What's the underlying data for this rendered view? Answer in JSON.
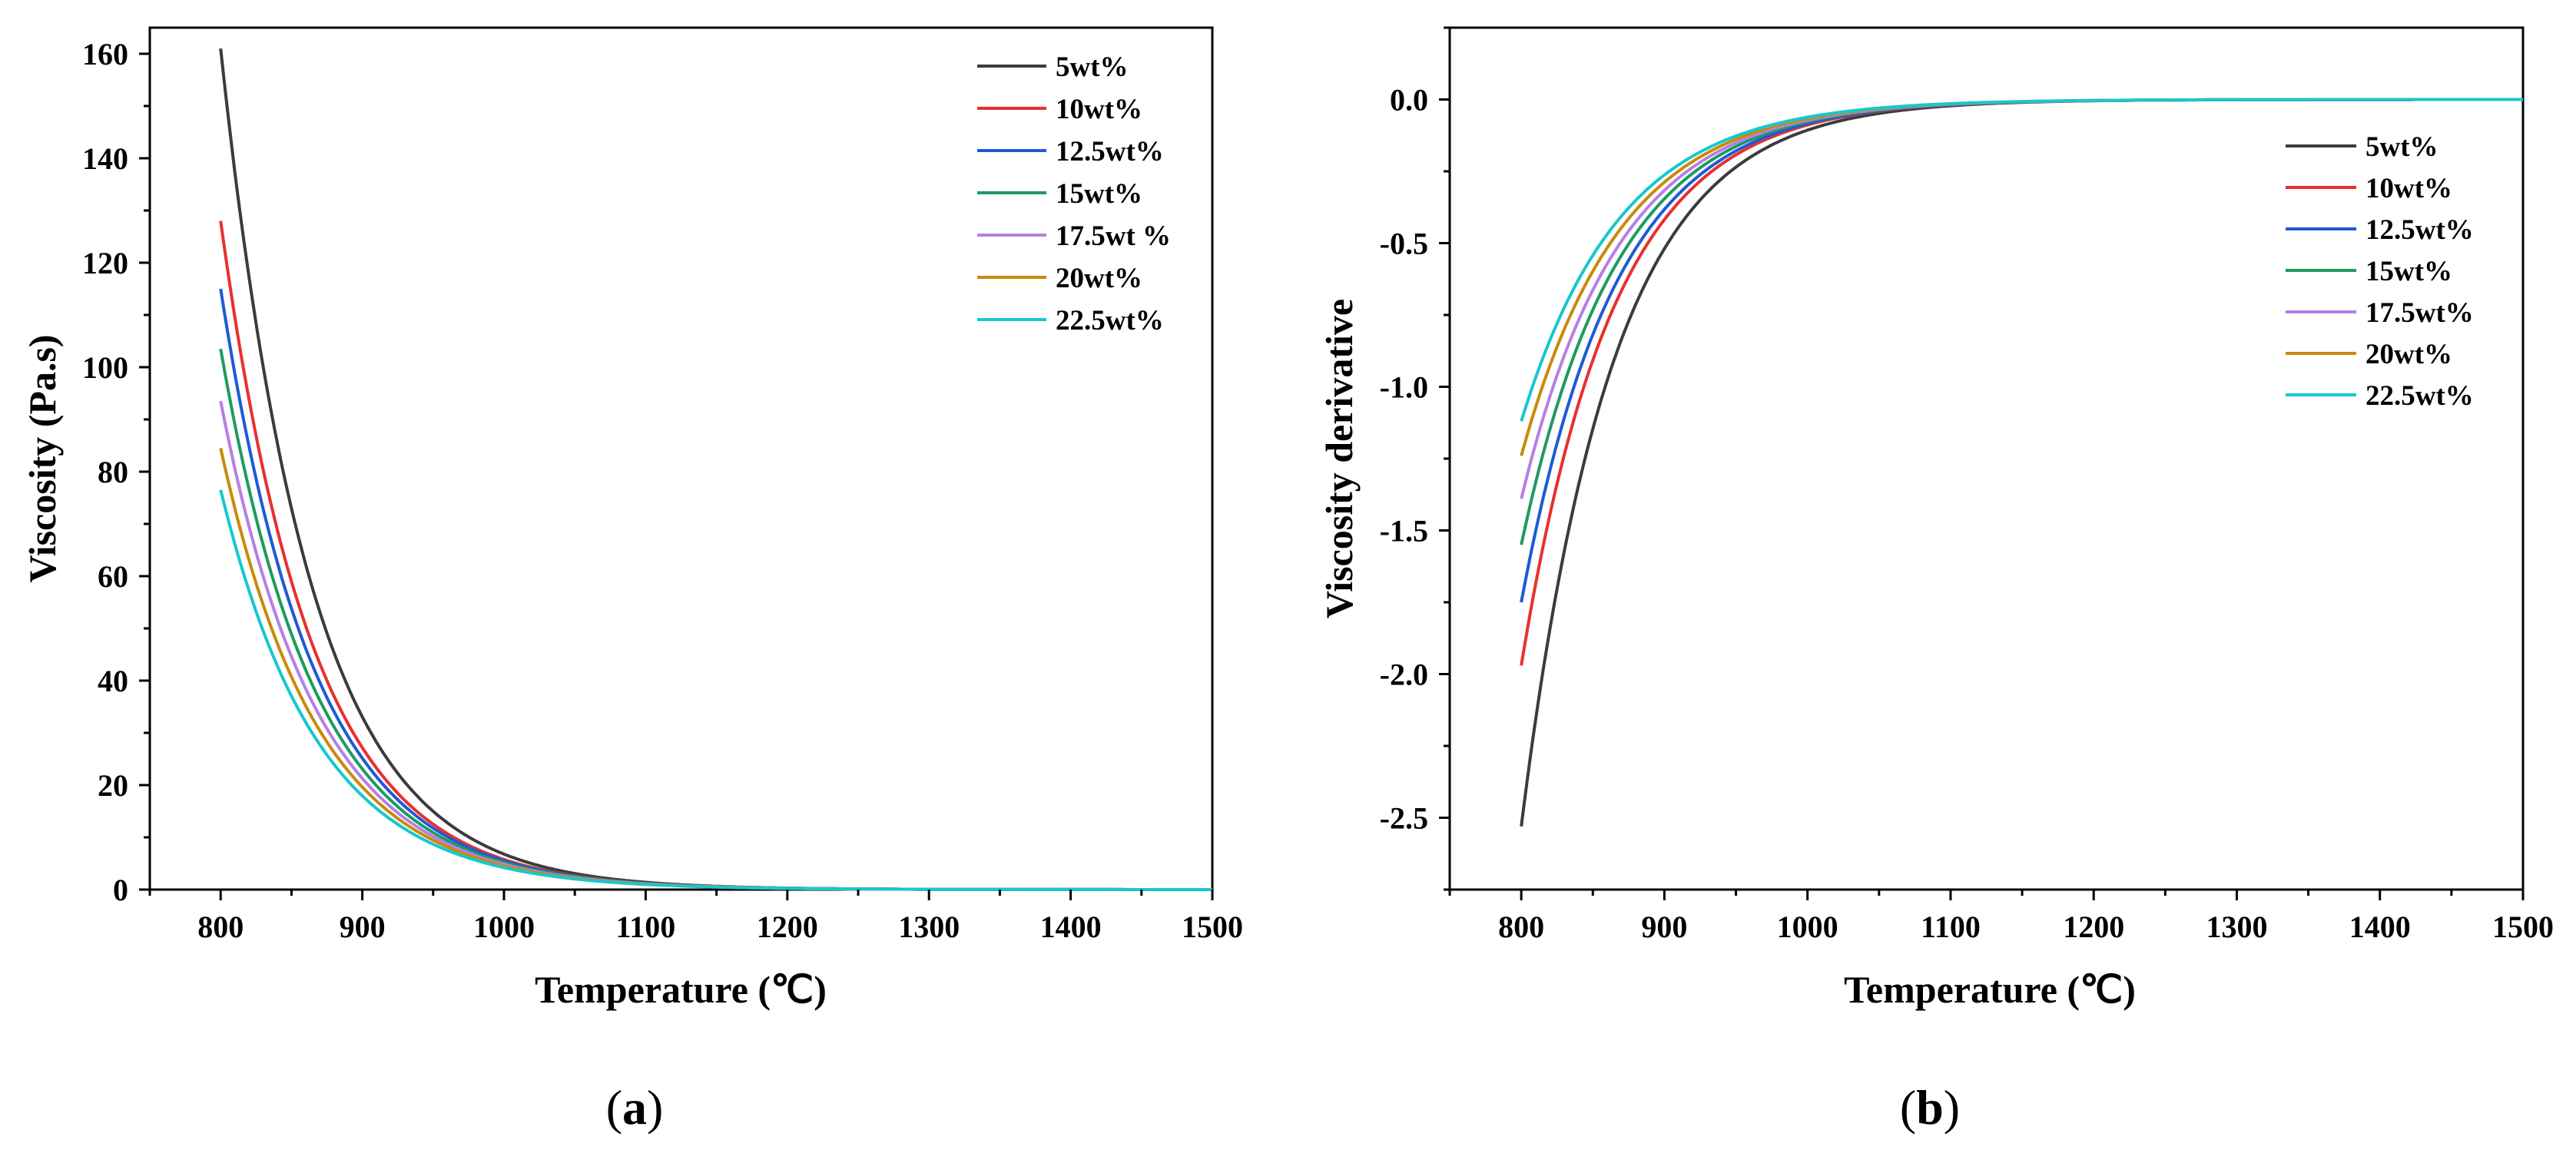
{
  "chart_data": [
    {
      "panel": "(a)",
      "type": "line",
      "xlabel": "Temperature (℃)",
      "ylabel": "Viscosity (Pa.s)",
      "xlim": [
        750,
        1500
      ],
      "ylim": [
        0,
        165
      ],
      "xticks": [
        800,
        900,
        1000,
        1100,
        1200,
        1300,
        1400,
        1500
      ],
      "yticks": [
        0,
        20,
        40,
        60,
        80,
        100,
        120,
        140,
        160
      ],
      "x": [
        800,
        1500
      ],
      "legend_position": "top-right",
      "series": [
        {
          "name": "5wt%",
          "color": "#3b3b3b",
          "start_value": 161.0,
          "decay": 0.01583
        },
        {
          "name": "10wt%",
          "color": "#e8302f",
          "start_value": 128.0,
          "decay": 0.0155
        },
        {
          "name": "12.5wt%",
          "color": "#1d5bd6",
          "start_value": 115.0,
          "decay": 0.0152
        },
        {
          "name": "15wt%",
          "color": "#1f9a62",
          "start_value": 103.5,
          "decay": 0.015
        },
        {
          "name": "17.5wt %",
          "color": "#b77fe4",
          "start_value": 93.5,
          "decay": 0.0148
        },
        {
          "name": "20wt%",
          "color": "#c98a0a",
          "start_value": 84.5,
          "decay": 0.0146
        },
        {
          "name": "22.5wt%",
          "color": "#18c7cf",
          "start_value": 76.5,
          "decay": 0.0145
        }
      ]
    },
    {
      "panel": "(b)",
      "type": "line",
      "xlabel": "Temperature (℃)",
      "ylabel": "Viscosity derivative",
      "xlim": [
        750,
        1500
      ],
      "ylim": [
        -2.75,
        0.25
      ],
      "xticks": [
        800,
        900,
        1000,
        1100,
        1200,
        1300,
        1400,
        1500
      ],
      "yticks": [
        0.0,
        -0.5,
        -1.0,
        -1.5,
        -2.0,
        -2.5
      ],
      "ytick_labels": [
        "0.0",
        "-0.5",
        "-1.0",
        "-1.5",
        "-2.0",
        "-2.5"
      ],
      "x": [
        800,
        1500
      ],
      "legend_position": "center-right",
      "series": [
        {
          "name": "5wt%",
          "color": "#3b3b3b",
          "start_value": -2.53,
          "decay": 0.01583
        },
        {
          "name": "10wt%",
          "color": "#e8302f",
          "start_value": -1.97,
          "decay": 0.0155
        },
        {
          "name": "12.5wt%",
          "color": "#1d5bd6",
          "start_value": -1.75,
          "decay": 0.0152
        },
        {
          "name": "15wt%",
          "color": "#1f9a62",
          "start_value": -1.55,
          "decay": 0.015
        },
        {
          "name": "17.5wt%",
          "color": "#b77fe4",
          "start_value": -1.39,
          "decay": 0.0148
        },
        {
          "name": "20wt%",
          "color": "#c98a0a",
          "start_value": -1.24,
          "decay": 0.0146
        },
        {
          "name": "22.5wt%",
          "color": "#18c7cf",
          "start_value": -1.12,
          "decay": 0.0145
        }
      ]
    }
  ]
}
